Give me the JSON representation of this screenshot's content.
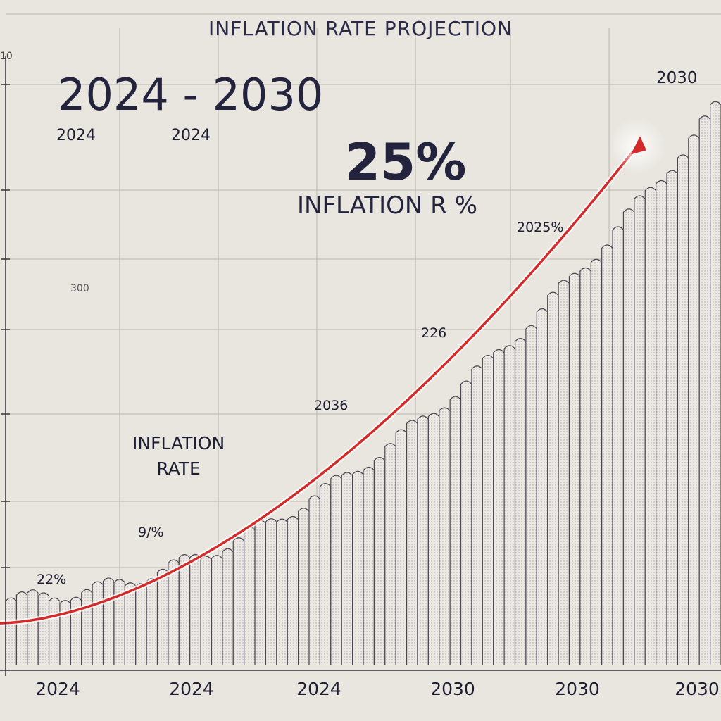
{
  "chart_data": {
    "type": "bar",
    "title": "INFLATION RATE PROJECTION",
    "headline": "2024 - 2030",
    "sublabels": [
      "2024",
      "2024"
    ],
    "highlight_value": "25%",
    "highlight_caption": "INFLATION R %",
    "series_caption": [
      "INFLATION",
      "RATE"
    ],
    "top_right_label": "2030",
    "y_tick_top": "10",
    "faint_label": "300",
    "annotations": [
      "22%",
      "9/%",
      "2036",
      "226",
      "2025%"
    ],
    "x_tick_labels": [
      "2024",
      "2024",
      "2024",
      "2030",
      "2030",
      "2030"
    ],
    "x": [
      2024,
      2030
    ],
    "bar_count": 66,
    "trend_range": [
      2,
      25
    ],
    "ylim": [
      0,
      30
    ],
    "grid": true,
    "colors": {
      "trend": "#d42a2a",
      "bars": "#ece9e4",
      "bar_edge": "#4a4650",
      "background": "#e8e6df",
      "grid": "#b9b6ae"
    }
  }
}
